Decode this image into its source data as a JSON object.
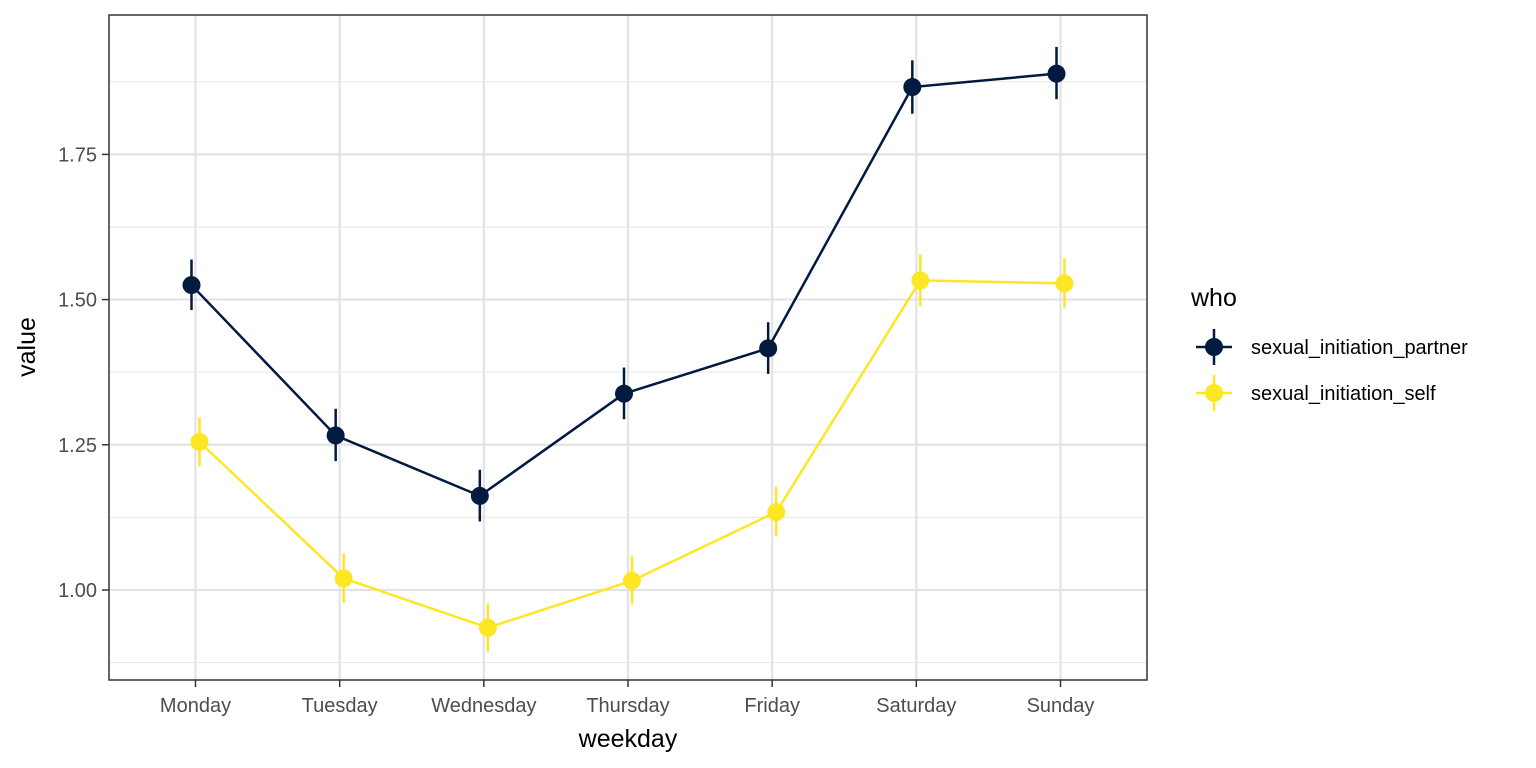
{
  "chart_data": {
    "type": "line",
    "title": "",
    "xlabel": "weekday",
    "ylabel": "value",
    "categories": [
      "Monday",
      "Tuesday",
      "Wednesday",
      "Thursday",
      "Friday",
      "Saturday",
      "Sunday"
    ],
    "ylim": [
      0.845,
      1.99
    ],
    "yticks": [
      1.0,
      1.25,
      1.5,
      1.75
    ],
    "ytick_labels": [
      "1.00",
      "1.25",
      "1.50",
      "1.75"
    ],
    "grid": true,
    "legend": {
      "title": "who",
      "position": "right"
    },
    "series": [
      {
        "name": "sexual_initiation_partner",
        "color": "#001a40",
        "values": [
          1.525,
          1.266,
          1.162,
          1.338,
          1.416,
          1.866,
          1.889
        ],
        "error_low": [
          1.482,
          1.222,
          1.118,
          1.294,
          1.372,
          1.82,
          1.845
        ],
        "error_high": [
          1.569,
          1.312,
          1.207,
          1.383,
          1.461,
          1.912,
          1.935
        ]
      },
      {
        "name": "sexual_initiation_self",
        "color": "#fde725",
        "values": [
          1.255,
          1.02,
          0.935,
          1.016,
          1.134,
          1.533,
          1.528
        ],
        "error_low": [
          1.213,
          0.978,
          0.893,
          0.975,
          1.092,
          1.489,
          1.486
        ],
        "error_high": [
          1.297,
          1.063,
          0.977,
          1.058,
          1.178,
          1.578,
          1.571
        ]
      }
    ]
  }
}
